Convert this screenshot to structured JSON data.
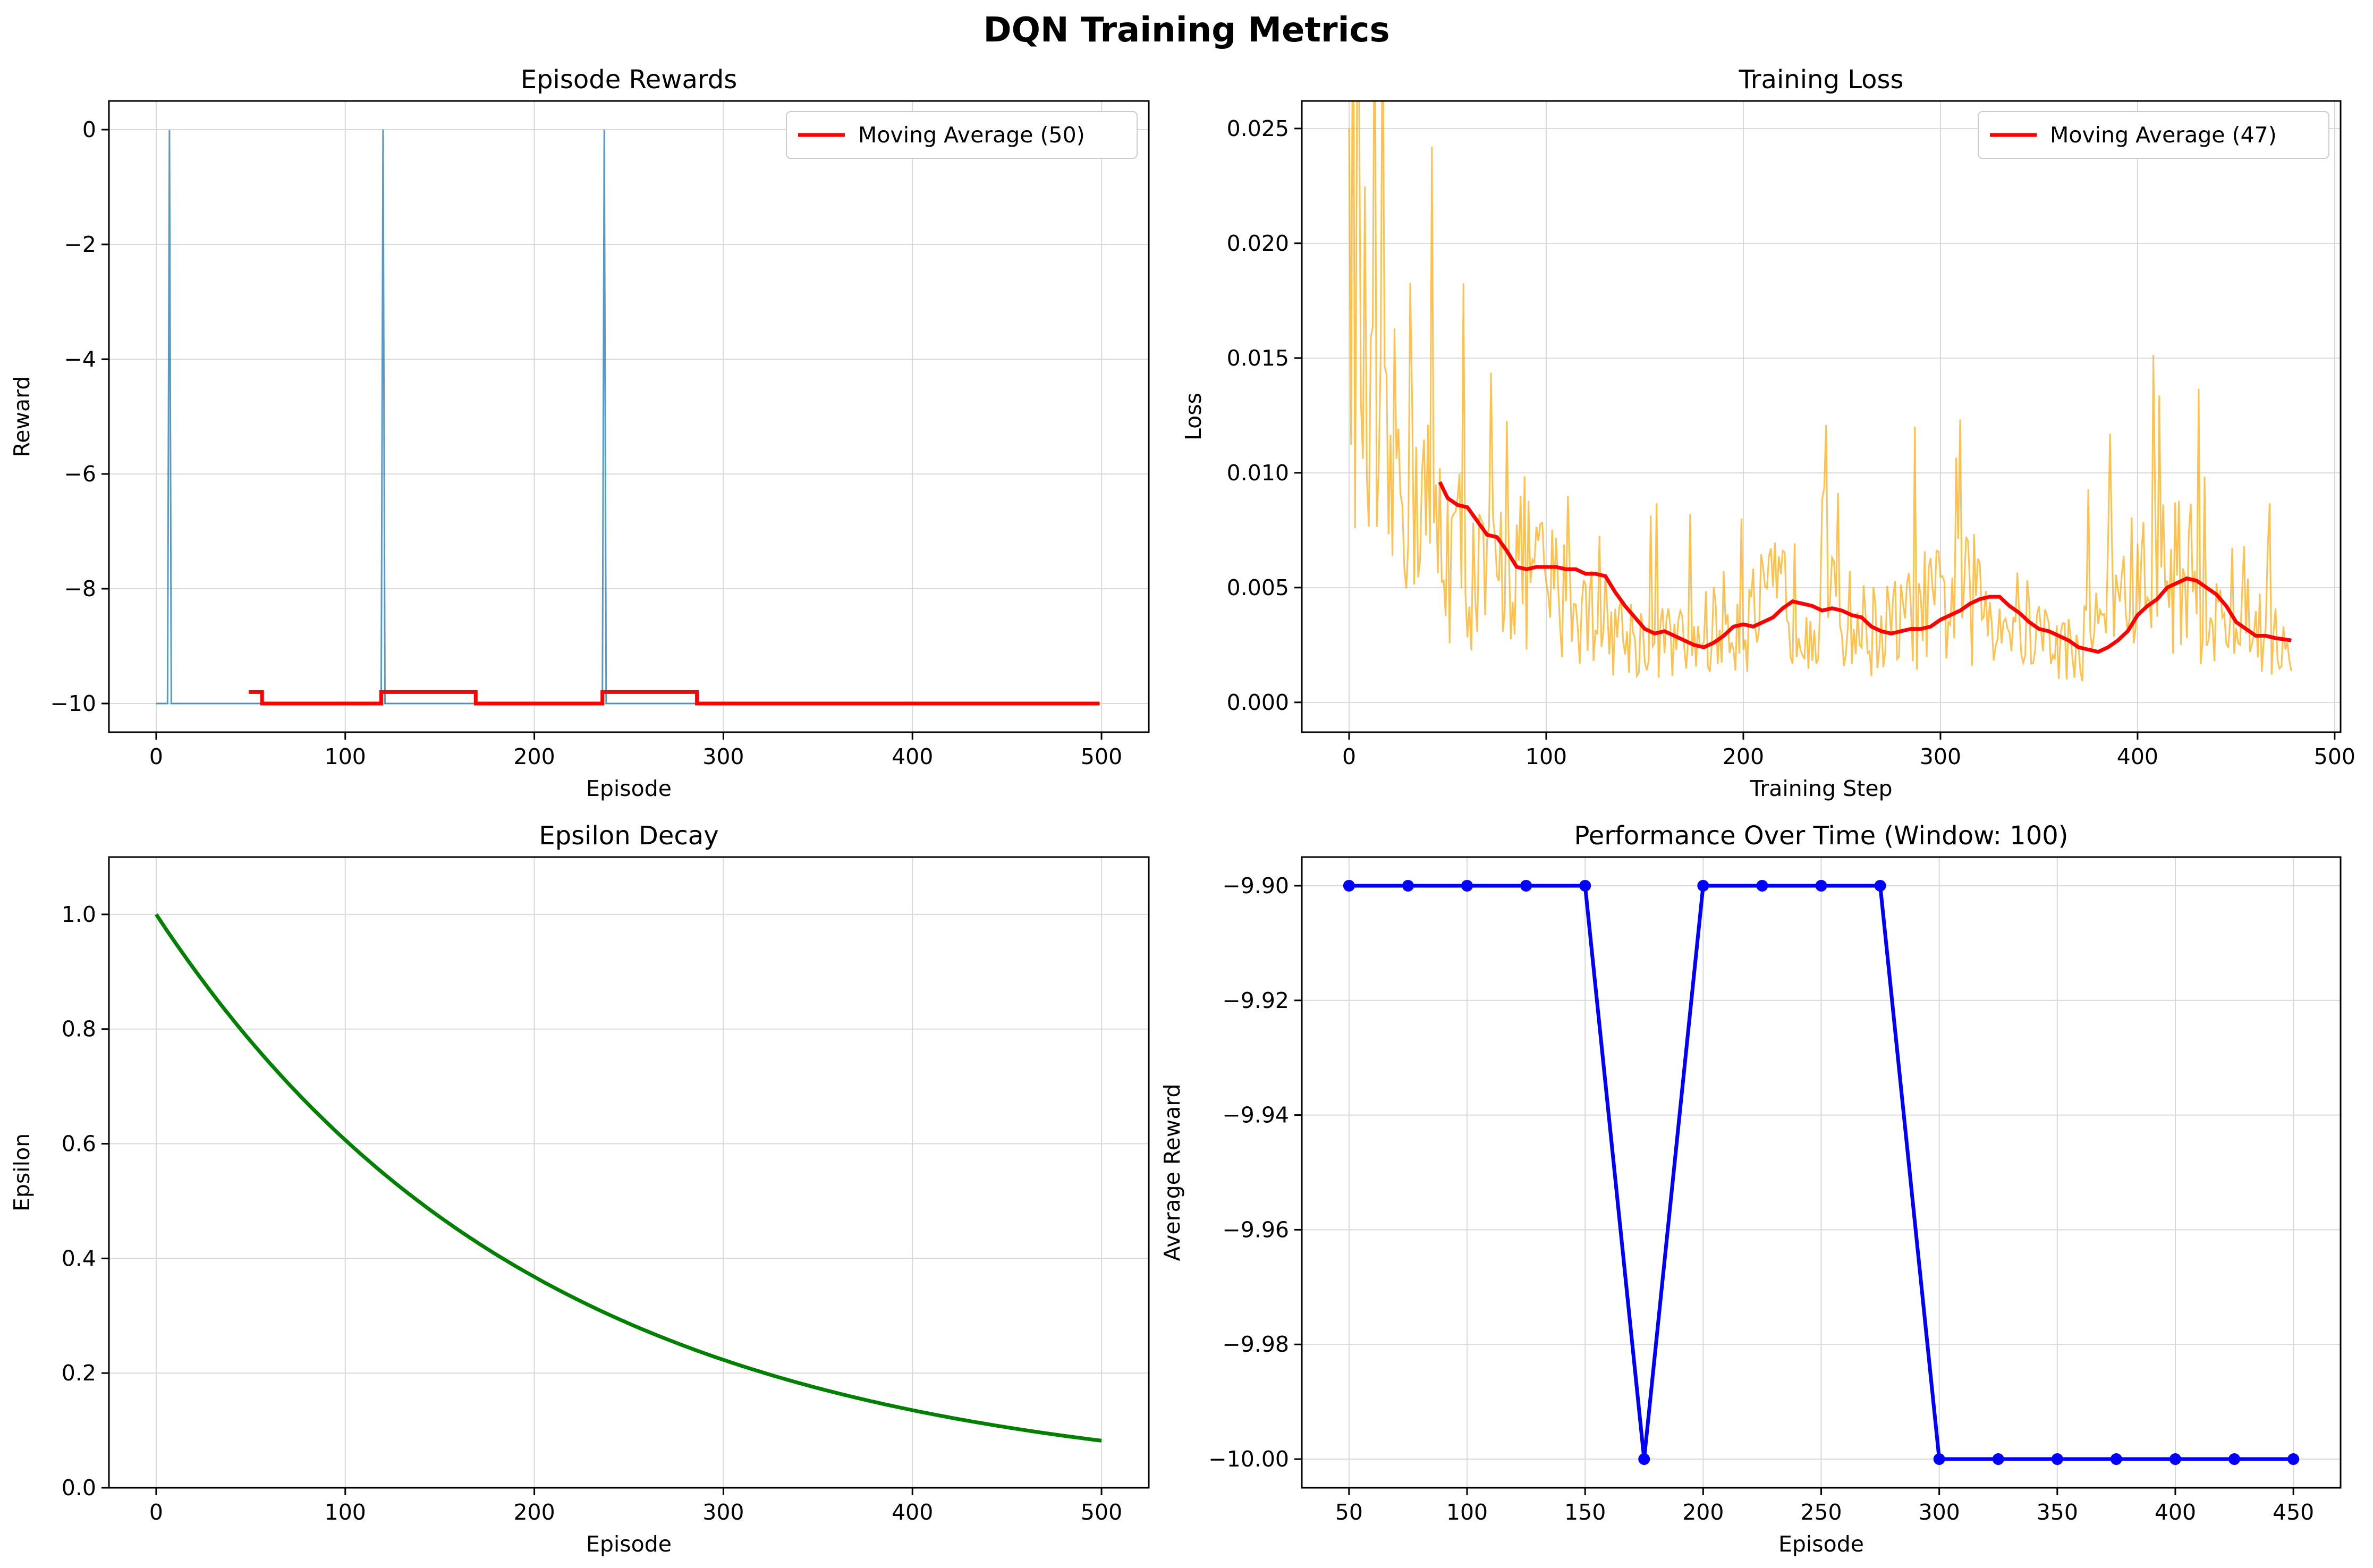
{
  "figure": {
    "title": "DQN Training Metrics"
  },
  "colors": {
    "rewards": "#1f77b4",
    "moving_average": "#ff0000",
    "loss": "#ffa500",
    "epsilon": "#008000",
    "performance": "#0000ff",
    "grid": "#d9d9d9",
    "axes": "#000000"
  },
  "chart_data": [
    {
      "id": "rewards",
      "type": "line",
      "title": "Episode Rewards",
      "xlabel": "Episode",
      "ylabel": "Reward",
      "xlim": [
        -25,
        525
      ],
      "ylim": [
        -10.5,
        0.5
      ],
      "xticks": [
        0,
        100,
        200,
        300,
        400,
        500
      ],
      "yticks": [
        0,
        -2,
        -4,
        -6,
        -8,
        -10
      ],
      "xtick_labels": [
        "0",
        "100",
        "200",
        "300",
        "400",
        "500"
      ],
      "ytick_labels": [
        "0",
        "−2",
        "−4",
        "−6",
        "−8",
        "−10"
      ],
      "grid": true,
      "legend_position": "upper right",
      "base_value": -10,
      "spike_episodes": [
        7,
        120,
        237
      ],
      "spike_value": 0,
      "n_episodes": 500,
      "series": [
        {
          "name": "",
          "x": [
            0,
            6,
            7,
            8,
            119,
            120,
            121,
            236,
            237,
            238,
            499
          ],
          "y": [
            -10,
            -10,
            0,
            -10,
            -10,
            0,
            -10,
            -10,
            0,
            -10,
            -10
          ]
        },
        {
          "name": "Moving Average (50)",
          "x": [
            49,
            56,
            56,
            119,
            119,
            169,
            169,
            236,
            236,
            286,
            286,
            499
          ],
          "y": [
            -9.8,
            -9.8,
            -10,
            -10,
            -9.8,
            -9.8,
            -10,
            -10,
            -9.8,
            -9.8,
            -10,
            -10
          ]
        }
      ]
    },
    {
      "id": "loss",
      "type": "line",
      "title": "Training Loss",
      "xlabel": "Training Step",
      "ylabel": "Loss",
      "xlim": [
        -24,
        503
      ],
      "ylim": [
        -0.0013,
        0.0262
      ],
      "xticks": [
        0,
        100,
        200,
        300,
        400,
        500
      ],
      "yticks": [
        0,
        0.005,
        0.01,
        0.015,
        0.02,
        0.025
      ],
      "xtick_labels": [
        "0",
        "100",
        "200",
        "300",
        "400",
        "500"
      ],
      "ytick_labels": [
        "0.000",
        "0.005",
        "0.010",
        "0.015",
        "0.020",
        "0.025"
      ],
      "grid": true,
      "legend_position": "upper right",
      "raw_series_anchors": {
        "x": [
          0,
          10,
          20,
          30,
          40,
          50,
          60,
          70,
          80,
          90,
          100,
          110,
          120,
          130,
          140,
          150,
          160,
          170,
          180,
          190,
          200,
          210,
          220,
          230,
          240,
          250,
          260,
          270,
          280,
          290,
          300,
          310,
          320,
          330,
          340,
          350,
          360,
          370,
          380,
          390,
          400,
          410,
          420,
          430,
          440,
          450,
          460,
          470,
          478
        ],
        "y": [
          0.025,
          0.011,
          0.009,
          0.012,
          0.008,
          0.007,
          0.006,
          0.005,
          0.006,
          0.006,
          0.005,
          0.0045,
          0.004,
          0.0035,
          0.003,
          0.0028,
          0.0027,
          0.0025,
          0.003,
          0.0035,
          0.0035,
          0.004,
          0.0045,
          0.0042,
          0.004,
          0.0038,
          0.0032,
          0.0032,
          0.0034,
          0.004,
          0.0042,
          0.0045,
          0.0045,
          0.004,
          0.0035,
          0.003,
          0.0025,
          0.0022,
          0.004,
          0.005,
          0.005,
          0.0055,
          0.006,
          0.005,
          0.0035,
          0.003,
          0.0035,
          0.003,
          0.0015
        ]
      },
      "series": [
        {
          "name": "",
          "x": [
            0,
            478
          ],
          "y": [
            0.025,
            0.0015
          ]
        },
        {
          "name": "Moving Average (47)",
          "x": [
            46,
            50,
            55,
            60,
            65,
            70,
            75,
            80,
            85,
            90,
            95,
            100,
            105,
            110,
            115,
            120,
            125,
            130,
            135,
            140,
            145,
            150,
            155,
            160,
            165,
            170,
            175,
            180,
            185,
            190,
            195,
            200,
            205,
            210,
            215,
            220,
            225,
            230,
            235,
            240,
            245,
            250,
            255,
            260,
            265,
            270,
            275,
            280,
            285,
            290,
            295,
            300,
            305,
            310,
            315,
            320,
            325,
            330,
            335,
            340,
            345,
            350,
            355,
            360,
            365,
            370,
            375,
            380,
            385,
            390,
            395,
            400,
            405,
            410,
            415,
            420,
            425,
            430,
            435,
            440,
            445,
            450,
            455,
            460,
            465,
            470,
            478
          ],
          "y": [
            0.0096,
            0.0089,
            0.0086,
            0.0085,
            0.0079,
            0.0073,
            0.0072,
            0.0066,
            0.0059,
            0.0058,
            0.0059,
            0.0059,
            0.0059,
            0.0058,
            0.0058,
            0.0056,
            0.0056,
            0.0055,
            0.0048,
            0.0042,
            0.0037,
            0.0032,
            0.003,
            0.0031,
            0.0029,
            0.0027,
            0.0025,
            0.0024,
            0.0026,
            0.0029,
            0.0033,
            0.0034,
            0.0033,
            0.0035,
            0.0037,
            0.0041,
            0.0044,
            0.0043,
            0.0042,
            0.004,
            0.0041,
            0.004,
            0.0038,
            0.0037,
            0.0033,
            0.0031,
            0.003,
            0.0031,
            0.0032,
            0.0032,
            0.0033,
            0.0036,
            0.0038,
            0.004,
            0.0043,
            0.0045,
            0.0046,
            0.0046,
            0.0042,
            0.0039,
            0.0035,
            0.0032,
            0.0031,
            0.0029,
            0.0027,
            0.0024,
            0.0023,
            0.0022,
            0.0024,
            0.0027,
            0.0031,
            0.0038,
            0.0042,
            0.0045,
            0.005,
            0.0052,
            0.0054,
            0.0053,
            0.005,
            0.0047,
            0.0042,
            0.0035,
            0.0032,
            0.0029,
            0.0029,
            0.0028,
            0.0027
          ]
        }
      ]
    },
    {
      "id": "epsilon",
      "type": "line",
      "title": "Epsilon Decay",
      "xlabel": "Episode",
      "ylabel": "Epsilon",
      "xlim": [
        -25,
        525
      ],
      "ylim": [
        0,
        1.1
      ],
      "xticks": [
        0,
        100,
        200,
        300,
        400,
        500
      ],
      "yticks": [
        0,
        0.2,
        0.4,
        0.6,
        0.8,
        1.0
      ],
      "xtick_labels": [
        "0",
        "100",
        "200",
        "300",
        "400",
        "500"
      ],
      "ytick_labels": [
        "0.0",
        "0.2",
        "0.4",
        "0.6",
        "0.8",
        "1.0"
      ],
      "grid": true,
      "series": [
        {
          "name": "",
          "x": [
            0,
            50,
            100,
            150,
            200,
            250,
            300,
            350,
            400,
            450,
            500
          ],
          "y": [
            1.0,
            0.778,
            0.606,
            0.472,
            0.367,
            0.286,
            0.223,
            0.173,
            0.135,
            0.105,
            0.082
          ]
        }
      ]
    },
    {
      "id": "performance",
      "type": "line",
      "title": "Performance Over Time (Window: 100)",
      "xlabel": "Episode",
      "ylabel": "Average Reward",
      "xlim": [
        30,
        470
      ],
      "ylim": [
        -10.005,
        -9.895
      ],
      "xticks": [
        50,
        100,
        150,
        200,
        250,
        300,
        350,
        400,
        450
      ],
      "yticks": [
        -9.9,
        -9.92,
        -9.94,
        -9.96,
        -9.98,
        -10.0
      ],
      "xtick_labels": [
        "50",
        "100",
        "150",
        "200",
        "250",
        "300",
        "350",
        "400",
        "450"
      ],
      "ytick_labels": [
        "−9.90",
        "−9.92",
        "−9.94",
        "−9.96",
        "−9.98",
        "−10.00"
      ],
      "grid": true,
      "markers": true,
      "series": [
        {
          "name": "",
          "x": [
            50,
            75,
            100,
            125,
            150,
            175,
            200,
            225,
            250,
            275,
            300,
            325,
            350,
            375,
            400,
            425,
            450
          ],
          "y": [
            -9.9,
            -9.9,
            -9.9,
            -9.9,
            -9.9,
            -10.0,
            -9.9,
            -9.9,
            -9.9,
            -9.9,
            -10.0,
            -10.0,
            -10.0,
            -10.0,
            -10.0,
            -10.0,
            -10.0
          ]
        }
      ]
    }
  ]
}
